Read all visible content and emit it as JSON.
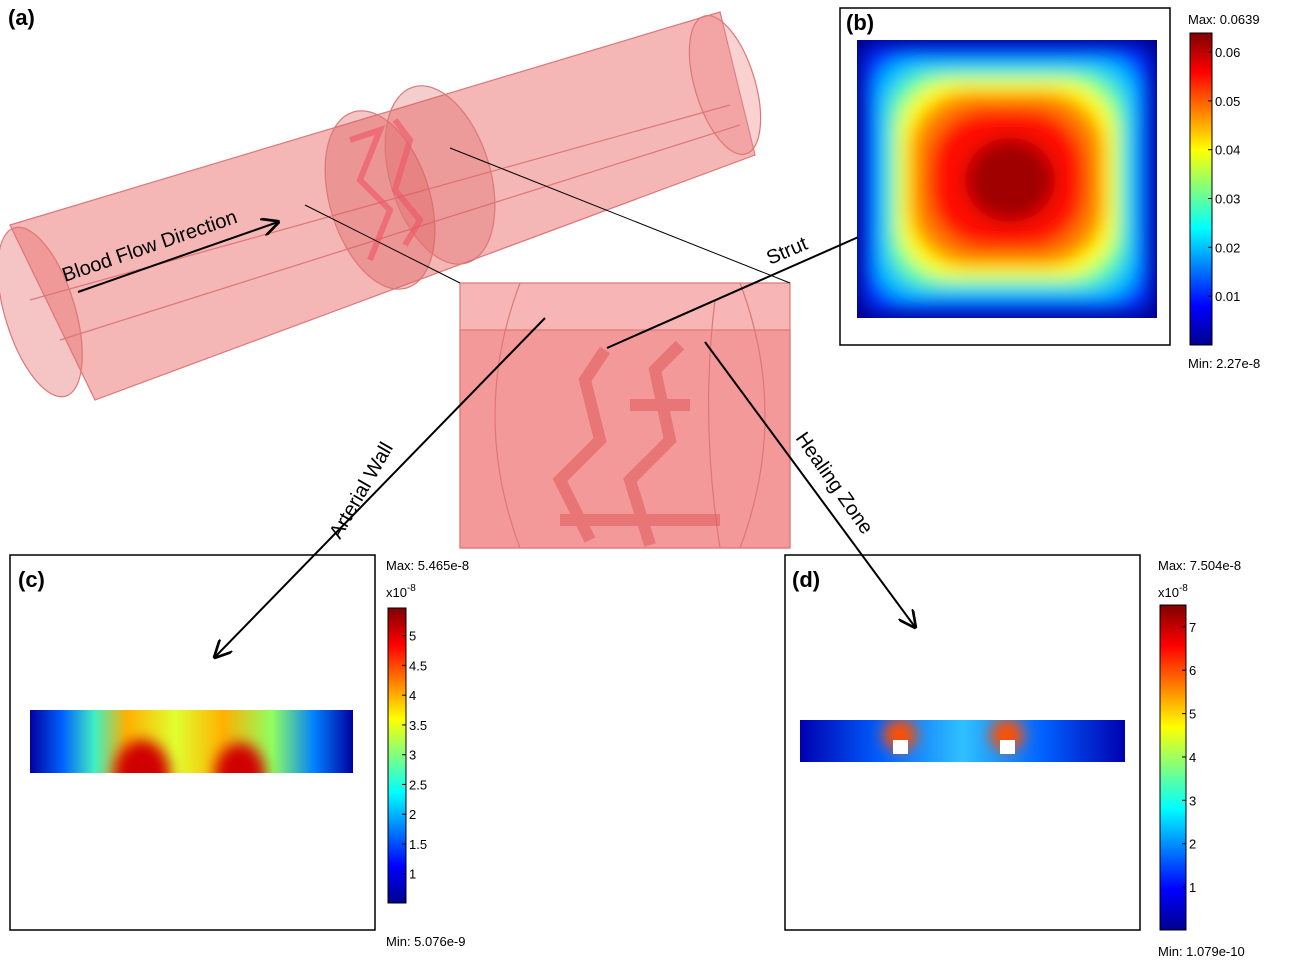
{
  "panels": {
    "a": {
      "label": "(a)",
      "flow": "Blood Flow Direction",
      "strut": "Strut",
      "wall": "Arterial Wall",
      "healing": "Healing Zone"
    },
    "b": {
      "label": "(b)",
      "colorbar": {
        "max_label": "Max: 0.0639",
        "min_label": "Min: 2.27e-8",
        "ticks": [
          "0.01",
          "0.02",
          "0.03",
          "0.04",
          "0.05",
          "0.06"
        ]
      }
    },
    "c": {
      "label": "(c)",
      "colorbar": {
        "max_label": "Max: 5.465e-8",
        "min_label": "Min: 5.076e-9",
        "multiplier": {
          "base": "x10",
          "exponent": "-8"
        },
        "ticks": [
          "1",
          "1.5",
          "2",
          "2.5",
          "3",
          "3.5",
          "4",
          "4.5",
          "5"
        ]
      }
    },
    "d": {
      "label": "(d)",
      "colorbar": {
        "max_label": "Max: 7.504e-8",
        "min_label": "Min: 1.079e-10",
        "multiplier": {
          "base": "x10",
          "exponent": "-8"
        },
        "ticks": [
          "1",
          "2",
          "3",
          "4",
          "5",
          "6",
          "7"
        ]
      }
    }
  }
}
